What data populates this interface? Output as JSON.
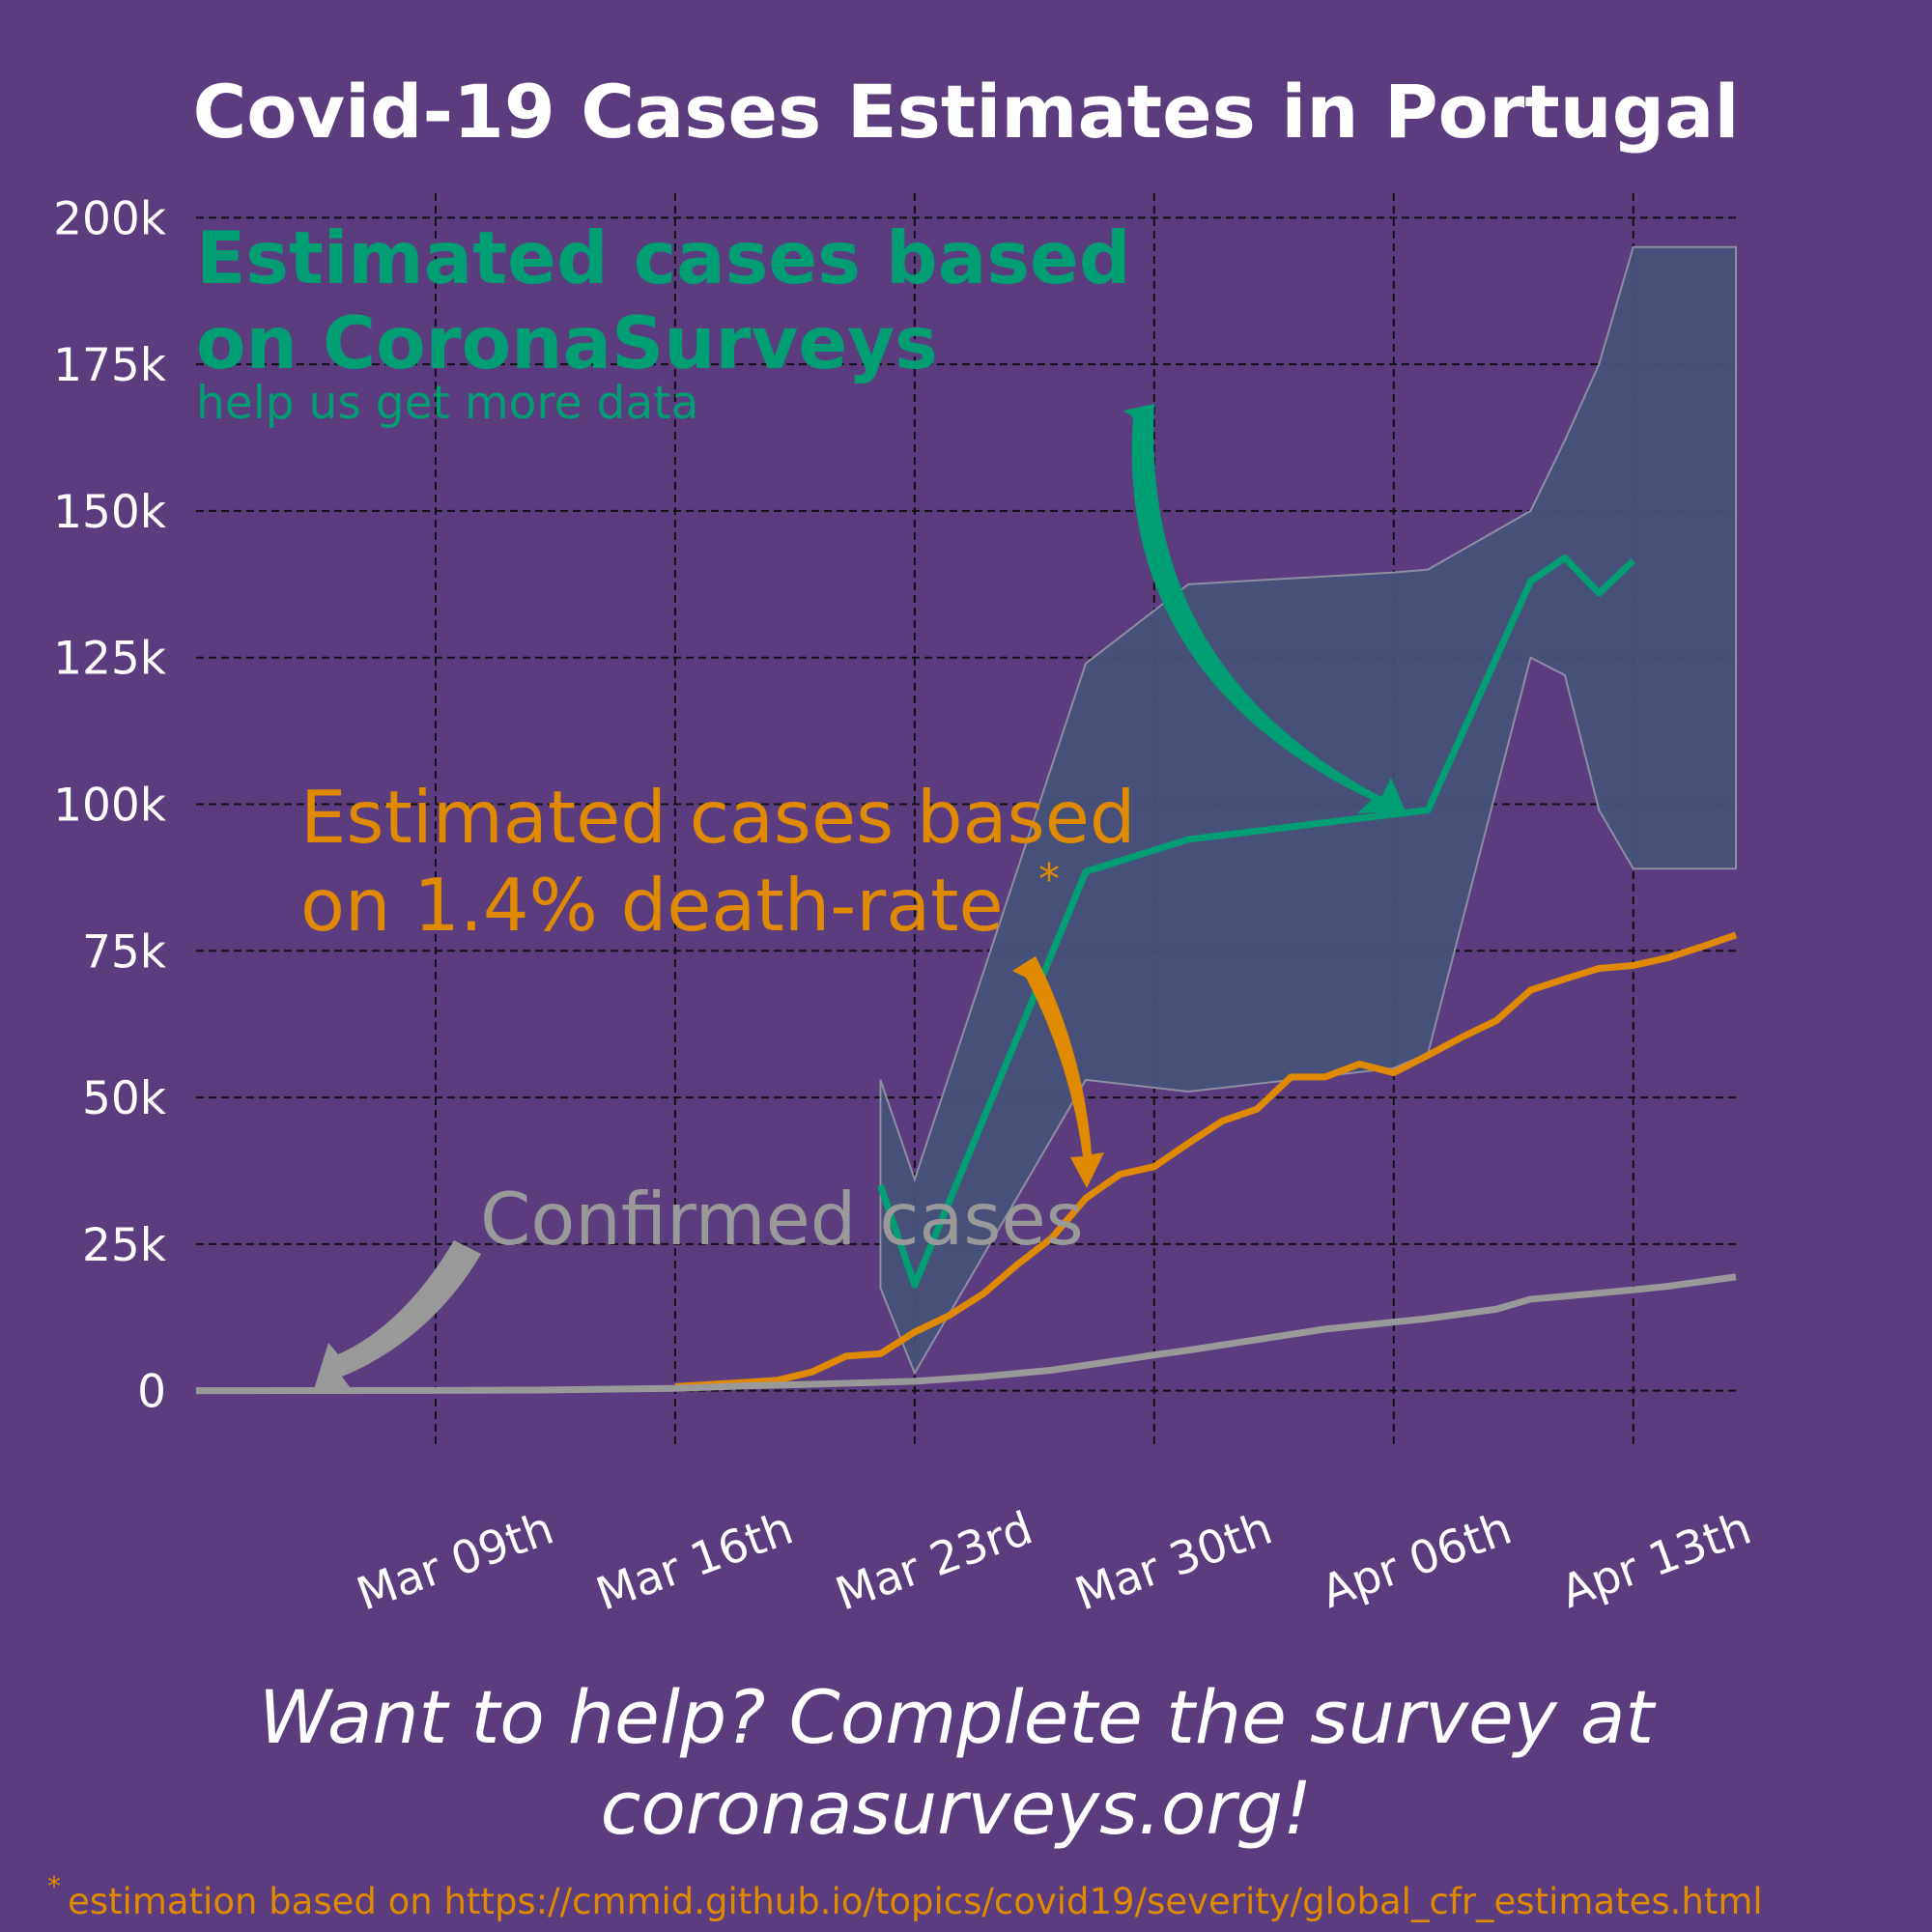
{
  "title": "Covid-19 Cases Estimates in Portugal",
  "annotations": {
    "survey_label_line1": "Estimated cases based",
    "survey_label_line2": "on CoronaSurveys",
    "survey_sublabel": "help us get more data",
    "death_label_line1": "Estimated cases based",
    "death_label_line2": "on 1.4% death-rate",
    "death_label_star": "*",
    "confirmed_label": "Confirmed cases"
  },
  "cta": {
    "line1": "Want to help? Complete the survey at",
    "line2": "coronasurveys.org!"
  },
  "footnote": {
    "star": "*",
    "text": "estimation based on https://cmmid.github.io/topics/covid19/severity/global_cfr_estimates.html"
  },
  "colors": {
    "background": "#5b3d7f",
    "survey": "#009e73",
    "death_rate": "#e08a00",
    "confirmed": "#999999",
    "band": "#475178"
  },
  "chart_data": {
    "type": "line",
    "title": "Covid-19 Cases Estimates in Portugal",
    "xlabel": "",
    "ylabel": "",
    "x_start": "2020-03-02",
    "x_end": "2020-04-16",
    "xlim": [
      "2020-03-02",
      "2020-04-16"
    ],
    "ylim": [
      -5000,
      205000
    ],
    "grid": true,
    "x_ticks": [
      "2020-03-09",
      "2020-03-16",
      "2020-03-23",
      "2020-03-30",
      "2020-04-06",
      "2020-04-13"
    ],
    "x_tick_labels": [
      "Mar 09th",
      "Mar 16th",
      "Mar 23rd",
      "Mar 30th",
      "Apr 06th",
      "Apr 13th"
    ],
    "y_ticks": [
      0,
      25000,
      50000,
      75000,
      100000,
      125000,
      150000,
      175000,
      200000
    ],
    "y_tick_labels": [
      "0",
      "25k",
      "50k",
      "75k",
      "100k",
      "125k",
      "150k",
      "175k",
      "200k"
    ],
    "series": [
      {
        "role": "death_rate",
        "color": "#e08a00",
        "x": [
          "2020-03-16",
          "2020-03-18",
          "2020-03-19",
          "2020-03-20",
          "2020-03-21",
          "2020-03-22",
          "2020-03-23",
          "2020-03-24",
          "2020-03-25",
          "2020-03-26",
          "2020-03-27",
          "2020-03-28",
          "2020-03-29",
          "2020-03-30",
          "2020-03-31",
          "2020-04-01",
          "2020-04-02",
          "2020-04-03",
          "2020-04-04",
          "2020-04-05",
          "2020-04-06",
          "2020-04-07",
          "2020-04-08",
          "2020-04-09",
          "2020-04-10",
          "2020-04-11",
          "2020-04-12",
          "2020-04-13",
          "2020-04-14",
          "2020-04-15",
          "2020-04-16"
        ],
        "y": [
          700,
          1400,
          1800,
          3200,
          5900,
          6300,
          10000,
          12800,
          16500,
          21500,
          26000,
          32800,
          36900,
          38200,
          42200,
          46000,
          48000,
          53500,
          53500,
          55700,
          54200,
          57200,
          60300,
          63100,
          68300,
          70200,
          72000,
          72500,
          73800,
          75700,
          77700
        ]
      },
      {
        "role": "confirmed",
        "color": "#999999",
        "x": [
          "2020-03-02",
          "2020-03-09",
          "2020-03-12",
          "2020-03-16",
          "2020-03-18",
          "2020-03-20",
          "2020-03-23",
          "2020-03-25",
          "2020-03-27",
          "2020-03-29",
          "2020-03-30",
          "2020-03-31",
          "2020-04-02",
          "2020-04-04",
          "2020-04-06",
          "2020-04-07",
          "2020-04-09",
          "2020-04-10",
          "2020-04-11",
          "2020-04-13",
          "2020-04-14",
          "2020-04-16"
        ],
        "y": [
          0,
          50,
          100,
          400,
          800,
          1100,
          1600,
          2400,
          3500,
          5200,
          6100,
          6900,
          8700,
          10500,
          11700,
          12300,
          13900,
          15600,
          16100,
          17200,
          17800,
          19400
        ]
      },
      {
        "role": "survey_estimate",
        "color": "#009e73",
        "x": [
          "2020-03-22",
          "2020-03-23",
          "2020-03-28",
          "2020-03-31",
          "2020-04-07",
          "2020-04-10",
          "2020-04-11",
          "2020-04-12",
          "2020-04-13"
        ],
        "y": [
          35000,
          18000,
          88500,
          94000,
          99000,
          138000,
          142000,
          136000,
          141500
        ]
      }
    ],
    "band": {
      "x": [
        "2020-03-22",
        "2020-03-23",
        "2020-03-28",
        "2020-03-31",
        "2020-04-06",
        "2020-04-07",
        "2020-04-10",
        "2020-04-11",
        "2020-04-12",
        "2020-04-13",
        "2020-04-16"
      ],
      "upper": [
        53000,
        36000,
        124000,
        137500,
        139500,
        140000,
        150000,
        162000,
        175000,
        195000,
        195000
      ],
      "lower": [
        17500,
        3000,
        53000,
        51000,
        55000,
        57500,
        125000,
        122000,
        99000,
        89000,
        89000
      ]
    }
  }
}
